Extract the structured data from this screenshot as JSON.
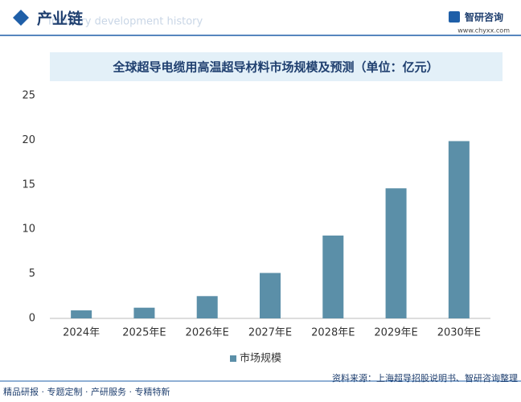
{
  "header": {
    "title": "产业链",
    "subtitle": "Industry development history",
    "logo": "智研咨询",
    "website": "www.chyxx.com"
  },
  "chart_data": {
    "type": "bar",
    "title": "全球超导电缆用高温超导材料市场规模及预测（单位：亿元）",
    "categories": [
      "2024年",
      "2025年E",
      "2026年E",
      "2027年E",
      "2028年E",
      "2029年E",
      "2030年E"
    ],
    "series": [
      {
        "name": "市场规模",
        "color": "#5b8fa8",
        "values": [
          0.9,
          1.2,
          2.5,
          5.1,
          9.3,
          14.6,
          19.9
        ]
      }
    ],
    "ylim": [
      0,
      25
    ],
    "yticks": [
      0,
      5,
      10,
      15,
      20,
      25
    ],
    "grid": false,
    "legend": "bottom"
  },
  "footer": {
    "services": "精品研报 · 专题定制 · 产研服务 · 专精特新",
    "source": "资料来源：上海超导招股说明书、智研咨询整理"
  }
}
